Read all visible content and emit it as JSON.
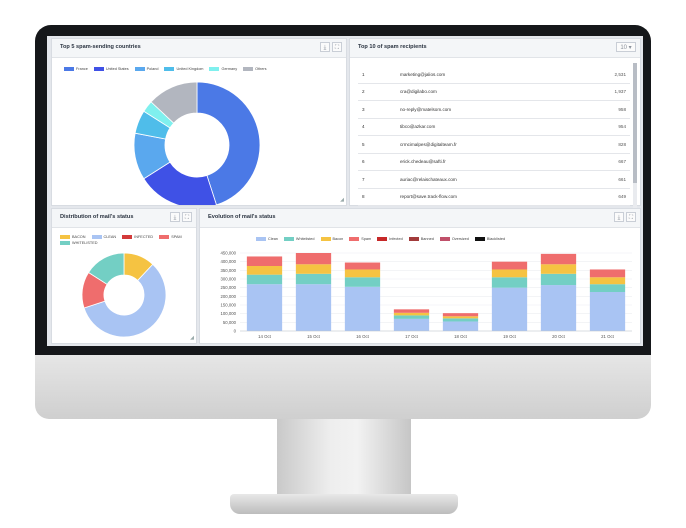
{
  "panels": {
    "countries": {
      "title": "Top 5 spam-sending countries",
      "legend": [
        {
          "label": "France",
          "color": "#4b79e6",
          "value": 45
        },
        {
          "label": "United States",
          "color": "#3f51e6",
          "value": 21
        },
        {
          "label": "Poland",
          "color": "#5aa8ee",
          "value": 12
        },
        {
          "label": "United Kingdom",
          "color": "#4fbdea",
          "value": 6
        },
        {
          "label": "Germany",
          "color": "#7ff0ee",
          "value": 3
        },
        {
          "label": "Others",
          "color": "#b2b6bf",
          "value": 13
        }
      ]
    },
    "recipients": {
      "title": "Top 10 of spam recipients",
      "dropdown": "10 ▾",
      "rows": [
        {
          "rank": "1",
          "email": "marketing@jalios.com",
          "count": "2,531"
        },
        {
          "rank": "2",
          "email": "cra@digilabo.com",
          "count": "1,937"
        },
        {
          "rank": "3",
          "email": "no-reply@matelsom.com",
          "count": "958"
        },
        {
          "rank": "4",
          "email": "tibco@azkar.com",
          "count": "954"
        },
        {
          "rank": "5",
          "email": "crmcimalpes@digitalteam.fr",
          "count": "828"
        },
        {
          "rank": "6",
          "email": "erick.chedeau@safti.fr",
          "count": "667"
        },
        {
          "rank": "7",
          "email": "auriac@relaischateaux.com",
          "count": "661"
        },
        {
          "rank": "8",
          "email": "report@save.track-flow.com",
          "count": "649"
        }
      ]
    },
    "distribution": {
      "title": "Distribution of mail's status",
      "legend": [
        {
          "label": "BACON",
          "color": "#f5c342",
          "value": 12
        },
        {
          "label": "CLEAN",
          "color": "#a9c4f3",
          "value": 58
        },
        {
          "label": "INFECTED",
          "color": "#d33a3a",
          "value": 0
        },
        {
          "label": "SPAM",
          "color": "#ef6d6d",
          "value": 14
        },
        {
          "label": "WHITELISTED",
          "color": "#73cfc4",
          "value": 16
        }
      ]
    },
    "evolution": {
      "title": "Evolution of mail's status"
    }
  },
  "chart_data": [
    {
      "type": "pie",
      "title": "Top 5 spam-sending countries",
      "labels": [
        "France",
        "United States",
        "Poland",
        "United Kingdom",
        "Germany",
        "Others"
      ],
      "values": [
        45,
        21,
        12,
        6,
        3,
        13
      ]
    },
    {
      "type": "pie",
      "title": "Distribution of mail's status",
      "labels": [
        "BACON",
        "CLEAN",
        "INFECTED",
        "SPAM",
        "WHITELISTED"
      ],
      "values": [
        12,
        58,
        0,
        14,
        16
      ]
    },
    {
      "type": "bar",
      "title": "Evolution of mail's status",
      "stacked": true,
      "categories": [
        "14 Oct",
        "15 Oct",
        "16 Oct",
        "17 Oct",
        "18 Oct",
        "19 Oct",
        "20 Oct",
        "21 Oct"
      ],
      "yticks": [
        "0",
        "50,000",
        "100,000",
        "150,000",
        "200,000",
        "250,000",
        "300,000",
        "350,000",
        "400,000",
        "450,000"
      ],
      "ylim": [
        0,
        450000
      ],
      "series": [
        {
          "name": "Clean",
          "color": "#a9c4f3",
          "values": [
            270000,
            270000,
            255000,
            70000,
            55000,
            250000,
            265000,
            225000
          ]
        },
        {
          "name": "Whitelisted",
          "color": "#73cfc4",
          "values": [
            55000,
            60000,
            55000,
            20000,
            18000,
            60000,
            65000,
            45000
          ]
        },
        {
          "name": "Bacon",
          "color": "#f5c342",
          "values": [
            50000,
            55000,
            45000,
            15000,
            12000,
            45000,
            55000,
            40000
          ]
        },
        {
          "name": "Spam",
          "color": "#ef6d6d",
          "values": [
            55000,
            65000,
            40000,
            20000,
            18000,
            45000,
            60000,
            45000
          ]
        },
        {
          "name": "Infected",
          "color": "#c62828",
          "values": [
            0,
            0,
            0,
            0,
            0,
            0,
            0,
            0
          ]
        },
        {
          "name": "Banned",
          "color": "#a23b3b",
          "values": [
            0,
            0,
            0,
            0,
            0,
            0,
            0,
            0
          ]
        },
        {
          "name": "Oversized",
          "color": "#c0506a",
          "values": [
            0,
            0,
            0,
            0,
            0,
            0,
            0,
            0
          ]
        },
        {
          "name": "Blacklisted",
          "color": "#111111",
          "values": [
            0,
            0,
            0,
            0,
            0,
            0,
            0,
            0
          ]
        }
      ]
    }
  ]
}
